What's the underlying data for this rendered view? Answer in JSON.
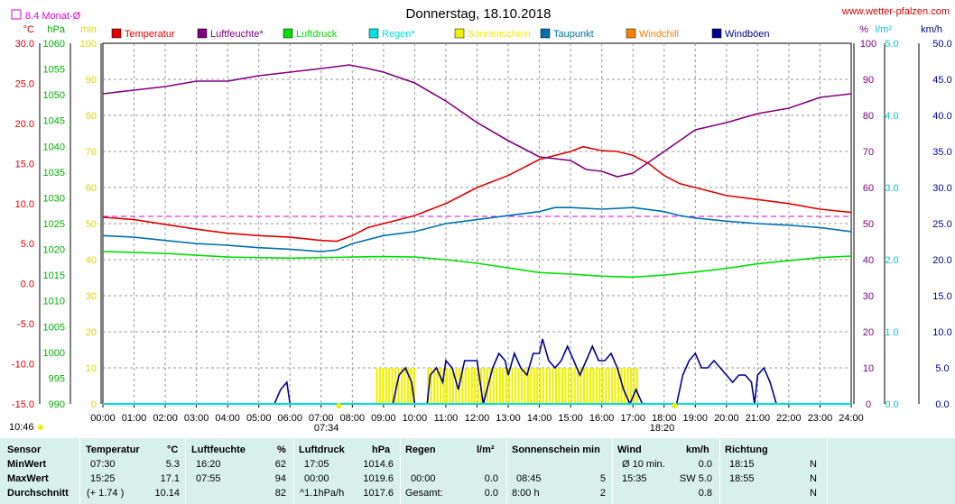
{
  "title": "Donnerstag, 18.10.2018",
  "site": "www.wetter-pfalzen.com",
  "avg_label": "8.4 Monat-Ø",
  "colors": {
    "temperatur": "#e00000",
    "luftfeuchte": "#800080",
    "luftdruck": "#00e000",
    "regen": "#00e0e0",
    "sonnenschein": "#f0f000",
    "taupunkt": "#0070b0",
    "windchill": "#ff8000",
    "windboeen": "#000090",
    "avg_line": "#e000e0"
  },
  "chart_data": {
    "type": "line",
    "x_unit": "time of day (h)",
    "x_ticks": [
      "00:00",
      "01:00",
      "02:00",
      "03:00",
      "04:00",
      "05:00",
      "06:00",
      "07:00",
      "08:00",
      "09:00",
      "10:00",
      "11:00",
      "12:00",
      "13:00",
      "14:00",
      "15:00",
      "16:00",
      "17:00",
      "18:00",
      "19:00",
      "20:00",
      "21:00",
      "22:00",
      "23:00",
      "24:00"
    ],
    "axes": {
      "temp": {
        "unit": "°C",
        "min": -15,
        "max": 30,
        "ticks": [
          "-15.0",
          "-10.0",
          "-5.0",
          "0.0",
          "5.0",
          "10.0",
          "15.0",
          "20.0",
          "25.0",
          "30.0"
        ]
      },
      "pressure": {
        "unit": "hPa",
        "min": 990,
        "max": 1060,
        "ticks": [
          "990",
          "995",
          "1000",
          "1005",
          "1010",
          "1015",
          "1020",
          "1025",
          "1030",
          "1035",
          "1040",
          "1045",
          "1050",
          "1055",
          "1060"
        ]
      },
      "minutes": {
        "unit": "min",
        "min": 0,
        "max": 100,
        "ticks": [
          "0",
          "10",
          "20",
          "30",
          "40",
          "50",
          "60",
          "70",
          "80",
          "90",
          "100"
        ]
      },
      "humidity": {
        "unit": "%",
        "min": 0,
        "max": 100,
        "ticks": [
          "0",
          "10",
          "20",
          "30",
          "40",
          "50",
          "60",
          "70",
          "80",
          "90",
          "100"
        ]
      },
      "rain": {
        "unit": "l/m²",
        "min": 0,
        "max": 5,
        "ticks": [
          "0.0",
          "1.0",
          "2.0",
          "3.0",
          "4.0",
          "5.0"
        ]
      },
      "wind": {
        "unit": "km/h",
        "min": 0,
        "max": 50,
        "ticks": [
          "0.0",
          "5.0",
          "10.0",
          "15.0",
          "20.0",
          "25.0",
          "30.0",
          "35.0",
          "40.0",
          "45.0",
          "50.0"
        ]
      }
    },
    "legend": [
      "Temperatur",
      "Luftfeuchte*",
      "Luftdruck",
      "Regen*",
      "Sonnenschein",
      "Taupunkt",
      "Windchill",
      "Windböen"
    ],
    "monthly_avg_temp": 8.4,
    "series": [
      {
        "name": "Temperatur",
        "axis": "temp",
        "points": [
          [
            0,
            8.3
          ],
          [
            1,
            8.0
          ],
          [
            2,
            7.4
          ],
          [
            3,
            6.8
          ],
          [
            4,
            6.3
          ],
          [
            5,
            6.0
          ],
          [
            6,
            5.8
          ],
          [
            7,
            5.4
          ],
          [
            7.5,
            5.3
          ],
          [
            8,
            6.0
          ],
          [
            8.5,
            7.0
          ],
          [
            9,
            7.5
          ],
          [
            10,
            8.5
          ],
          [
            11,
            10.0
          ],
          [
            12,
            12.0
          ],
          [
            13,
            13.5
          ],
          [
            14,
            15.5
          ],
          [
            15,
            16.5
          ],
          [
            15.4,
            17.1
          ],
          [
            16,
            16.6
          ],
          [
            16.5,
            16.5
          ],
          [
            17,
            16.0
          ],
          [
            17.5,
            15.0
          ],
          [
            18,
            13.5
          ],
          [
            18.5,
            12.5
          ],
          [
            19,
            12.0
          ],
          [
            20,
            11.0
          ],
          [
            21,
            10.5
          ],
          [
            22,
            10.0
          ],
          [
            23,
            9.3
          ],
          [
            24,
            8.9
          ]
        ]
      },
      {
        "name": "Luftfeuchte*",
        "axis": "humidity",
        "points": [
          [
            0,
            86
          ],
          [
            1,
            87
          ],
          [
            2,
            88
          ],
          [
            3,
            89.5
          ],
          [
            4,
            89.5
          ],
          [
            5,
            91
          ],
          [
            6,
            92
          ],
          [
            7,
            93
          ],
          [
            7.9,
            94
          ],
          [
            8.5,
            93
          ],
          [
            9,
            92
          ],
          [
            10,
            89
          ],
          [
            11,
            84
          ],
          [
            12,
            78
          ],
          [
            13,
            73
          ],
          [
            14,
            68.5
          ],
          [
            14.5,
            68
          ],
          [
            15,
            67.5
          ],
          [
            15.5,
            65
          ],
          [
            16,
            64.5
          ],
          [
            16.5,
            63
          ],
          [
            17,
            64
          ],
          [
            17.5,
            67
          ],
          [
            18,
            70
          ],
          [
            18.5,
            73
          ],
          [
            19,
            76
          ],
          [
            20,
            78
          ],
          [
            21,
            80.5
          ],
          [
            22,
            82
          ],
          [
            23,
            85
          ],
          [
            24,
            86
          ]
        ]
      },
      {
        "name": "Luftdruck",
        "axis": "pressure",
        "points": [
          [
            0,
            1019.6
          ],
          [
            2,
            1019.2
          ],
          [
            4,
            1018.5
          ],
          [
            6,
            1018.3
          ],
          [
            8,
            1018.5
          ],
          [
            9,
            1018.6
          ],
          [
            10,
            1018.5
          ],
          [
            11,
            1018.0
          ],
          [
            12,
            1017.3
          ],
          [
            13,
            1016.4
          ],
          [
            14,
            1015.5
          ],
          [
            15,
            1015.2
          ],
          [
            16,
            1014.8
          ],
          [
            17,
            1014.6
          ],
          [
            18,
            1015.0
          ],
          [
            19,
            1015.6
          ],
          [
            20,
            1016.3
          ],
          [
            21,
            1017.2
          ],
          [
            22,
            1017.8
          ],
          [
            23,
            1018.4
          ],
          [
            24,
            1018.7
          ]
        ]
      },
      {
        "name": "Taupunkt",
        "axis": "temp",
        "points": [
          [
            0,
            6.0
          ],
          [
            1,
            5.8
          ],
          [
            2,
            5.4
          ],
          [
            3,
            5.0
          ],
          [
            4,
            4.8
          ],
          [
            5,
            4.5
          ],
          [
            6,
            4.3
          ],
          [
            7,
            4.0
          ],
          [
            7.5,
            4.2
          ],
          [
            8,
            5.0
          ],
          [
            9,
            6.0
          ],
          [
            10,
            6.5
          ],
          [
            11,
            7.5
          ],
          [
            12,
            8.0
          ],
          [
            13,
            8.5
          ],
          [
            14,
            9.0
          ],
          [
            14.5,
            9.5
          ],
          [
            15,
            9.5
          ],
          [
            16,
            9.3
          ],
          [
            17,
            9.5
          ],
          [
            18,
            9.0
          ],
          [
            18.5,
            8.5
          ],
          [
            19,
            8.2
          ],
          [
            20,
            7.8
          ],
          [
            21,
            7.5
          ],
          [
            22,
            7.3
          ],
          [
            23,
            7.0
          ],
          [
            24,
            6.5
          ]
        ]
      },
      {
        "name": "Windböen",
        "axis": "wind",
        "points": [
          [
            0,
            0
          ],
          [
            5.5,
            0
          ],
          [
            5.7,
            2
          ],
          [
            5.9,
            3
          ],
          [
            6.0,
            0
          ],
          [
            9.3,
            0
          ],
          [
            9.5,
            4
          ],
          [
            9.7,
            5
          ],
          [
            9.9,
            3
          ],
          [
            10,
            0
          ],
          [
            10.4,
            0
          ],
          [
            10.5,
            4
          ],
          [
            10.7,
            5
          ],
          [
            10.9,
            3
          ],
          [
            11,
            6
          ],
          [
            11.2,
            5
          ],
          [
            11.4,
            2
          ],
          [
            11.6,
            6
          ],
          [
            11.8,
            6
          ],
          [
            12,
            6
          ],
          [
            12.2,
            0
          ],
          [
            12.5,
            5
          ],
          [
            12.7,
            7
          ],
          [
            12.9,
            6
          ],
          [
            13,
            4
          ],
          [
            13.2,
            7
          ],
          [
            13.4,
            5
          ],
          [
            13.6,
            4
          ],
          [
            13.8,
            7
          ],
          [
            14,
            7
          ],
          [
            14.1,
            9
          ],
          [
            14.3,
            6
          ],
          [
            14.5,
            5
          ],
          [
            14.7,
            6
          ],
          [
            14.9,
            8
          ],
          [
            15.1,
            6
          ],
          [
            15.3,
            4
          ],
          [
            15.5,
            6
          ],
          [
            15.7,
            8
          ],
          [
            15.9,
            6
          ],
          [
            16.1,
            6
          ],
          [
            16.3,
            7
          ],
          [
            16.5,
            5
          ],
          [
            16.7,
            2
          ],
          [
            16.9,
            0
          ],
          [
            17.1,
            2
          ],
          [
            17.3,
            0
          ],
          [
            17.8,
            0
          ],
          [
            18.4,
            0
          ],
          [
            18.6,
            4
          ],
          [
            18.8,
            6
          ],
          [
            19,
            7
          ],
          [
            19.2,
            5
          ],
          [
            19.4,
            5
          ],
          [
            19.6,
            6
          ],
          [
            19.8,
            5
          ],
          [
            20,
            4
          ],
          [
            20.2,
            3
          ],
          [
            20.4,
            4
          ],
          [
            20.6,
            4
          ],
          [
            20.8,
            3
          ],
          [
            20.9,
            0
          ],
          [
            21,
            4
          ],
          [
            21.2,
            5
          ],
          [
            21.4,
            3
          ],
          [
            21.6,
            0
          ],
          [
            24,
            0
          ]
        ]
      },
      {
        "name": "Regen*",
        "axis": "rain",
        "points": [
          [
            0,
            0
          ],
          [
            24,
            0
          ]
        ]
      }
    ],
    "sunshine": [
      [
        8.75,
        9.85
      ],
      [
        9.95,
        10.0
      ],
      [
        10.4,
        17.15
      ]
    ],
    "sunrise": "07:34",
    "sunset": "18:20",
    "rule_label": "10:46"
  },
  "stats": {
    "headers": {
      "sensor": "Sensor",
      "temp": "Temperatur",
      "temp_unit": "°C",
      "hum": "Luftfeuchte",
      "hum_unit": "%",
      "press": "Luftdruck",
      "press_unit": "hPa",
      "rain": "Regen",
      "rain_unit": "l/m²",
      "sun": "Sonnenschein min",
      "wind": "Wind",
      "wind_unit": "km/h",
      "dir": "Richtung"
    },
    "rows": [
      {
        "label": "MinWert",
        "temp_t": "07:30",
        "temp_v": "5.3",
        "hum_t": "16:20",
        "hum_v": "62",
        "press_t": "17:05",
        "press_v": "1014.6",
        "rain_t": "",
        "rain_v": "",
        "sun_t": "",
        "sun_v": "",
        "wind_t": "Ø 10 min.",
        "wind_v": "0.0",
        "dir_t": "18:15",
        "dir_v": "N"
      },
      {
        "label": "MaxWert",
        "temp_t": "15:25",
        "temp_v": "17.1",
        "hum_t": "07:55",
        "hum_v": "94",
        "press_t": "00:00",
        "press_v": "1019.6",
        "rain_t": "00:00",
        "rain_v": "0.0",
        "sun_t": "08:45",
        "sun_v": "5",
        "wind_t": "15:35",
        "wind_v": "SW 5.0",
        "dir_t": "18:55",
        "dir_v": "N"
      },
      {
        "label": "Durchschnitt",
        "temp_t": "(+ 1.74 )",
        "temp_v": "10.14",
        "hum_t": "",
        "hum_v": "82",
        "press_t": "^1.1hPa/h",
        "press_v": "1017.6",
        "rain_t": "Gesamt:",
        "rain_v": "0.0",
        "sun_t": "8:00 h",
        "sun_v": "2",
        "wind_t": "",
        "wind_v": "0.8",
        "dir_t": "",
        "dir_v": "N"
      }
    ]
  }
}
